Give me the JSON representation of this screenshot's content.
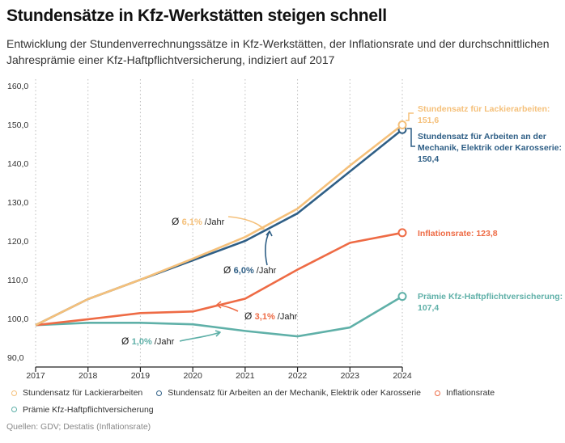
{
  "header": {
    "title": "Stundensätze in Kfz-Werkstätten steigen schnell",
    "subtitle": "Entwicklung der Stundenverrechnungssätze in Kfz-Werkstätten, der Inflationsrate und der durchschnittlichen Jahresprämie einer Kfz-Haftpflichtversicherung, indiziert auf 2017"
  },
  "chart_data": {
    "type": "line",
    "title": "Stundensätze in Kfz-Werkstätten steigen schnell",
    "xlabel": "",
    "ylabel": "",
    "x": [
      "2017",
      "2018",
      "2019",
      "2020",
      "2021",
      "2022",
      "2023",
      "2024"
    ],
    "ylim": [
      90,
      160
    ],
    "yticks": [
      "90,0",
      "100,0",
      "110,0",
      "120,0",
      "130,0",
      "140,0",
      "150,0",
      "160,0"
    ],
    "grid": "vertical dotted",
    "legend_position": "bottom",
    "series": [
      {
        "name": "Stundensatz für Lackierarbeiten",
        "color": "#f5c07a",
        "values": [
          100,
          106.7,
          111.7,
          117.1,
          122.7,
          130.0,
          141.1,
          151.6
        ],
        "end_label": "Stundensatz für Lackierarbeiten: 151,6",
        "end_label_lines": [
          "Stundensatz für Lackierarbeiten:",
          "151,6"
        ],
        "avg_growth": "6,1%"
      },
      {
        "name": "Stundensatz für Arbeiten an der Mechanik, Elektrik oder Karosserie",
        "color": "#2f5f86",
        "values": [
          100,
          106.7,
          111.7,
          116.7,
          121.7,
          128.8,
          139.6,
          150.4
        ],
        "end_label_lines": [
          "Stundensatz für Arbeiten an der",
          "Mechanik, Elektrik oder Karosserie:",
          "150,4"
        ],
        "avg_growth": "6,0%"
      },
      {
        "name": "Inflationsrate",
        "color": "#ee6b45",
        "values": [
          100,
          101.5,
          103.1,
          103.5,
          106.8,
          114.3,
          121.2,
          123.8
        ],
        "end_label_lines": [
          "Inflationsrate: 123,8"
        ],
        "avg_growth": "3,1%"
      },
      {
        "name": "Prämie Kfz-Haftpflichtversicherung",
        "color": "#5fb0a8",
        "values": [
          100,
          100.6,
          100.6,
          100.2,
          98.5,
          97.1,
          99.4,
          107.4
        ],
        "end_label_lines": [
          "Prämie Kfz-Haftpflichtversicherung:",
          "107,4"
        ],
        "avg_growth": "1,0%"
      }
    ],
    "annotations": {
      "avg_symbol": "Ø",
      "per_year": " /Jahr"
    }
  },
  "legend": {
    "items": [
      {
        "label": "Stundensatz für Lackierarbeiten",
        "color": "#f5c07a"
      },
      {
        "label": "Stundensatz für Arbeiten an der Mechanik, Elektrik oder Karosserie",
        "color": "#2f5f86"
      },
      {
        "label": "Inflationsrate",
        "color": "#ee6b45"
      },
      {
        "label": "Prämie Kfz-Haftpflichtversicherung",
        "color": "#5fb0a8"
      }
    ]
  },
  "source": "Quellen: GDV; Destatis (Inflationsrate)"
}
